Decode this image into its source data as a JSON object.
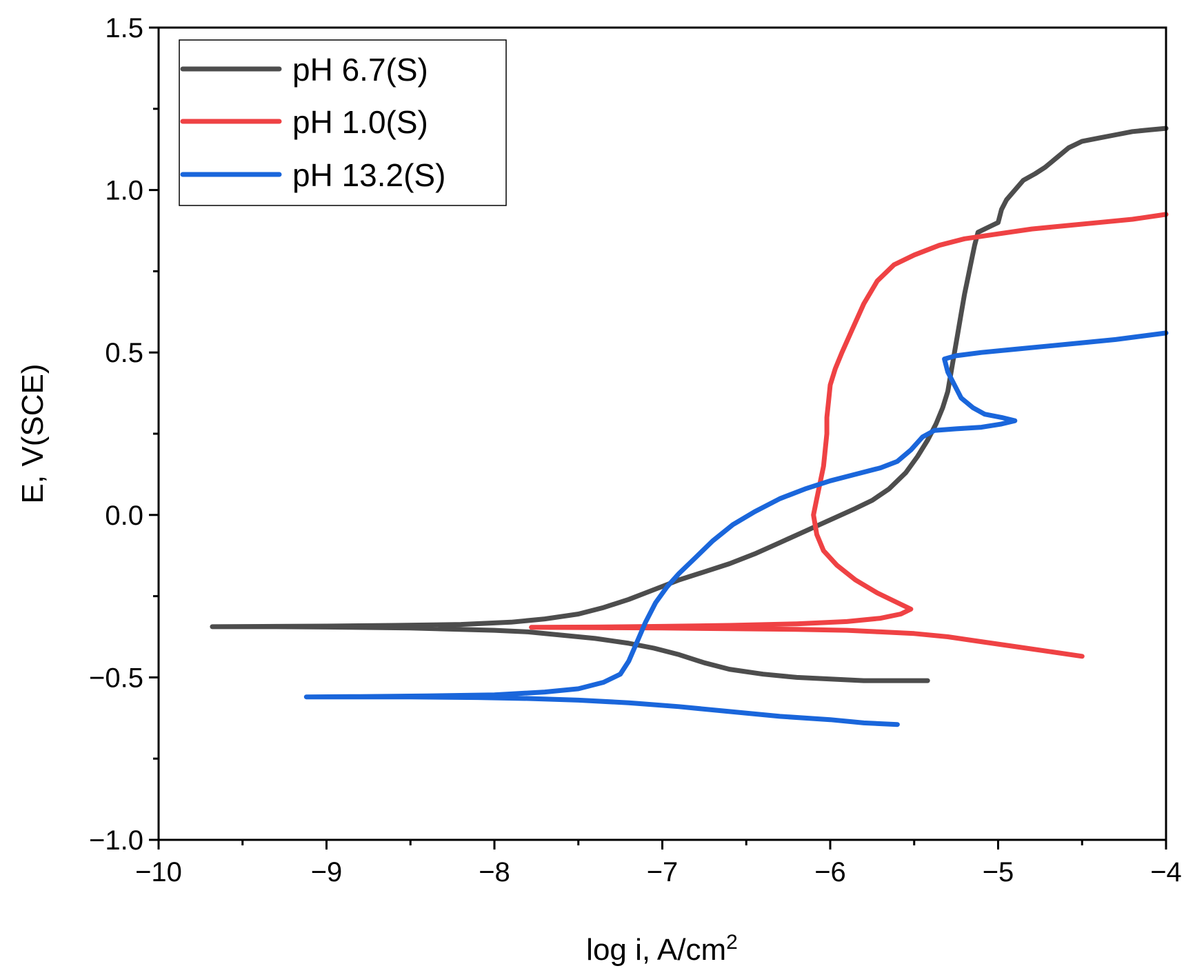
{
  "chart_data": {
    "type": "line",
    "title": "",
    "xlabel": "log i, A/cm",
    "xlabel_sup": "2",
    "ylabel": "E, V(SCE)",
    "xlim": [
      -10,
      -4
    ],
    "ylim": [
      -1.0,
      1.5
    ],
    "x_major_ticks": [
      -10,
      -9,
      -8,
      -7,
      -6,
      -5,
      -4
    ],
    "x_tick_labels": [
      "−10",
      "−9",
      "−8",
      "−7",
      "−6",
      "−5",
      "−4"
    ],
    "y_major_ticks": [
      -1.0,
      -0.5,
      0.0,
      0.5,
      1.0,
      1.5
    ],
    "y_tick_labels": [
      "−1.0",
      "−0.5",
      "0.0",
      "0.5",
      "1.0",
      "1.5"
    ],
    "grid": false,
    "legend_position": "top-left",
    "series": [
      {
        "name": "pH 6.7(S)",
        "color": "#4d4d4d",
        "points": [
          [
            -5.42,
            -0.51
          ],
          [
            -5.6,
            -0.51
          ],
          [
            -5.8,
            -0.51
          ],
          [
            -6.0,
            -0.505
          ],
          [
            -6.2,
            -0.5
          ],
          [
            -6.4,
            -0.49
          ],
          [
            -6.6,
            -0.475
          ],
          [
            -6.75,
            -0.455
          ],
          [
            -6.9,
            -0.43
          ],
          [
            -7.05,
            -0.41
          ],
          [
            -7.2,
            -0.395
          ],
          [
            -7.4,
            -0.38
          ],
          [
            -7.6,
            -0.37
          ],
          [
            -7.8,
            -0.36
          ],
          [
            -8.0,
            -0.355
          ],
          [
            -8.5,
            -0.348
          ],
          [
            -9.0,
            -0.345
          ],
          [
            -9.3,
            -0.344
          ],
          [
            -9.68,
            -0.344
          ],
          [
            -9.3,
            -0.343
          ],
          [
            -9.0,
            -0.342
          ],
          [
            -8.6,
            -0.34
          ],
          [
            -8.2,
            -0.337
          ],
          [
            -7.9,
            -0.33
          ],
          [
            -7.7,
            -0.32
          ],
          [
            -7.5,
            -0.305
          ],
          [
            -7.35,
            -0.285
          ],
          [
            -7.2,
            -0.26
          ],
          [
            -7.1,
            -0.24
          ],
          [
            -7.0,
            -0.22
          ],
          [
            -6.9,
            -0.2
          ],
          [
            -6.75,
            -0.175
          ],
          [
            -6.6,
            -0.15
          ],
          [
            -6.45,
            -0.12
          ],
          [
            -6.3,
            -0.085
          ],
          [
            -6.15,
            -0.05
          ],
          [
            -6.0,
            -0.015
          ],
          [
            -5.85,
            0.02
          ],
          [
            -5.75,
            0.045
          ],
          [
            -5.65,
            0.08
          ],
          [
            -5.55,
            0.13
          ],
          [
            -5.48,
            0.18
          ],
          [
            -5.42,
            0.23
          ],
          [
            -5.37,
            0.28
          ],
          [
            -5.33,
            0.33
          ],
          [
            -5.3,
            0.38
          ],
          [
            -5.28,
            0.44
          ],
          [
            -5.26,
            0.5
          ],
          [
            -5.24,
            0.56
          ],
          [
            -5.22,
            0.62
          ],
          [
            -5.2,
            0.68
          ],
          [
            -5.18,
            0.73
          ],
          [
            -5.16,
            0.78
          ],
          [
            -5.14,
            0.83
          ],
          [
            -5.12,
            0.87
          ],
          [
            -5.08,
            0.88
          ],
          [
            -5.04,
            0.89
          ],
          [
            -5.0,
            0.9
          ],
          [
            -4.98,
            0.94
          ],
          [
            -4.95,
            0.97
          ],
          [
            -4.9,
            1.0
          ],
          [
            -4.85,
            1.03
          ],
          [
            -4.78,
            1.05
          ],
          [
            -4.72,
            1.07
          ],
          [
            -4.65,
            1.1
          ],
          [
            -4.58,
            1.13
          ],
          [
            -4.5,
            1.15
          ],
          [
            -4.4,
            1.16
          ],
          [
            -4.3,
            1.17
          ],
          [
            -4.2,
            1.18
          ],
          [
            -4.1,
            1.185
          ],
          [
            -4.0,
            1.19
          ]
        ]
      },
      {
        "name": "pH 1.0(S)",
        "color": "#ef4244",
        "points": [
          [
            -4.5,
            -0.435
          ],
          [
            -4.7,
            -0.42
          ],
          [
            -4.9,
            -0.405
          ],
          [
            -5.1,
            -0.39
          ],
          [
            -5.3,
            -0.375
          ],
          [
            -5.5,
            -0.365
          ],
          [
            -5.7,
            -0.36
          ],
          [
            -5.9,
            -0.355
          ],
          [
            -6.2,
            -0.352
          ],
          [
            -6.6,
            -0.35
          ],
          [
            -7.0,
            -0.348
          ],
          [
            -7.4,
            -0.347
          ],
          [
            -7.78,
            -0.346
          ],
          [
            -7.4,
            -0.345
          ],
          [
            -7.0,
            -0.343
          ],
          [
            -6.6,
            -0.34
          ],
          [
            -6.2,
            -0.335
          ],
          [
            -5.9,
            -0.328
          ],
          [
            -5.7,
            -0.318
          ],
          [
            -5.58,
            -0.305
          ],
          [
            -5.52,
            -0.29
          ],
          [
            -5.58,
            -0.275
          ],
          [
            -5.72,
            -0.24
          ],
          [
            -5.85,
            -0.2
          ],
          [
            -5.96,
            -0.155
          ],
          [
            -6.04,
            -0.11
          ],
          [
            -6.08,
            -0.06
          ],
          [
            -6.1,
            0.0
          ],
          [
            -6.08,
            0.05
          ],
          [
            -6.06,
            0.1
          ],
          [
            -6.04,
            0.15
          ],
          [
            -6.03,
            0.2
          ],
          [
            -6.02,
            0.25
          ],
          [
            -6.02,
            0.3
          ],
          [
            -6.01,
            0.35
          ],
          [
            -6.0,
            0.4
          ],
          [
            -5.97,
            0.45
          ],
          [
            -5.93,
            0.5
          ],
          [
            -5.87,
            0.57
          ],
          [
            -5.8,
            0.65
          ],
          [
            -5.72,
            0.72
          ],
          [
            -5.62,
            0.77
          ],
          [
            -5.5,
            0.8
          ],
          [
            -5.35,
            0.83
          ],
          [
            -5.2,
            0.85
          ],
          [
            -5.0,
            0.865
          ],
          [
            -4.8,
            0.88
          ],
          [
            -4.6,
            0.89
          ],
          [
            -4.4,
            0.9
          ],
          [
            -4.2,
            0.91
          ],
          [
            -4.0,
            0.925
          ]
        ]
      },
      {
        "name": "pH 13.2(S)",
        "color": "#1a66db",
        "points": [
          [
            -5.6,
            -0.645
          ],
          [
            -5.8,
            -0.64
          ],
          [
            -6.0,
            -0.63
          ],
          [
            -6.3,
            -0.62
          ],
          [
            -6.6,
            -0.605
          ],
          [
            -6.9,
            -0.59
          ],
          [
            -7.2,
            -0.578
          ],
          [
            -7.5,
            -0.57
          ],
          [
            -7.8,
            -0.565
          ],
          [
            -8.1,
            -0.562
          ],
          [
            -8.5,
            -0.56
          ],
          [
            -9.0,
            -0.56
          ],
          [
            -9.12,
            -0.56
          ],
          [
            -8.8,
            -0.559
          ],
          [
            -8.4,
            -0.557
          ],
          [
            -8.0,
            -0.554
          ],
          [
            -7.7,
            -0.545
          ],
          [
            -7.5,
            -0.535
          ],
          [
            -7.35,
            -0.515
          ],
          [
            -7.25,
            -0.49
          ],
          [
            -7.2,
            -0.45
          ],
          [
            -7.15,
            -0.39
          ],
          [
            -7.1,
            -0.33
          ],
          [
            -7.04,
            -0.27
          ],
          [
            -6.97,
            -0.22
          ],
          [
            -6.9,
            -0.18
          ],
          [
            -6.8,
            -0.13
          ],
          [
            -6.7,
            -0.08
          ],
          [
            -6.58,
            -0.03
          ],
          [
            -6.45,
            0.01
          ],
          [
            -6.3,
            0.05
          ],
          [
            -6.15,
            0.08
          ],
          [
            -6.0,
            0.105
          ],
          [
            -5.85,
            0.125
          ],
          [
            -5.7,
            0.145
          ],
          [
            -5.6,
            0.165
          ],
          [
            -5.52,
            0.2
          ],
          [
            -5.45,
            0.24
          ],
          [
            -5.38,
            0.26
          ],
          [
            -5.25,
            0.265
          ],
          [
            -5.1,
            0.27
          ],
          [
            -4.98,
            0.28
          ],
          [
            -4.9,
            0.29
          ],
          [
            -4.98,
            0.3
          ],
          [
            -5.08,
            0.31
          ],
          [
            -5.15,
            0.33
          ],
          [
            -5.22,
            0.36
          ],
          [
            -5.26,
            0.4
          ],
          [
            -5.3,
            0.44
          ],
          [
            -5.32,
            0.48
          ],
          [
            -5.25,
            0.49
          ],
          [
            -5.1,
            0.5
          ],
          [
            -4.9,
            0.51
          ],
          [
            -4.7,
            0.52
          ],
          [
            -4.5,
            0.53
          ],
          [
            -4.3,
            0.54
          ],
          [
            -4.15,
            0.55
          ],
          [
            -4.0,
            0.56
          ]
        ]
      }
    ]
  }
}
